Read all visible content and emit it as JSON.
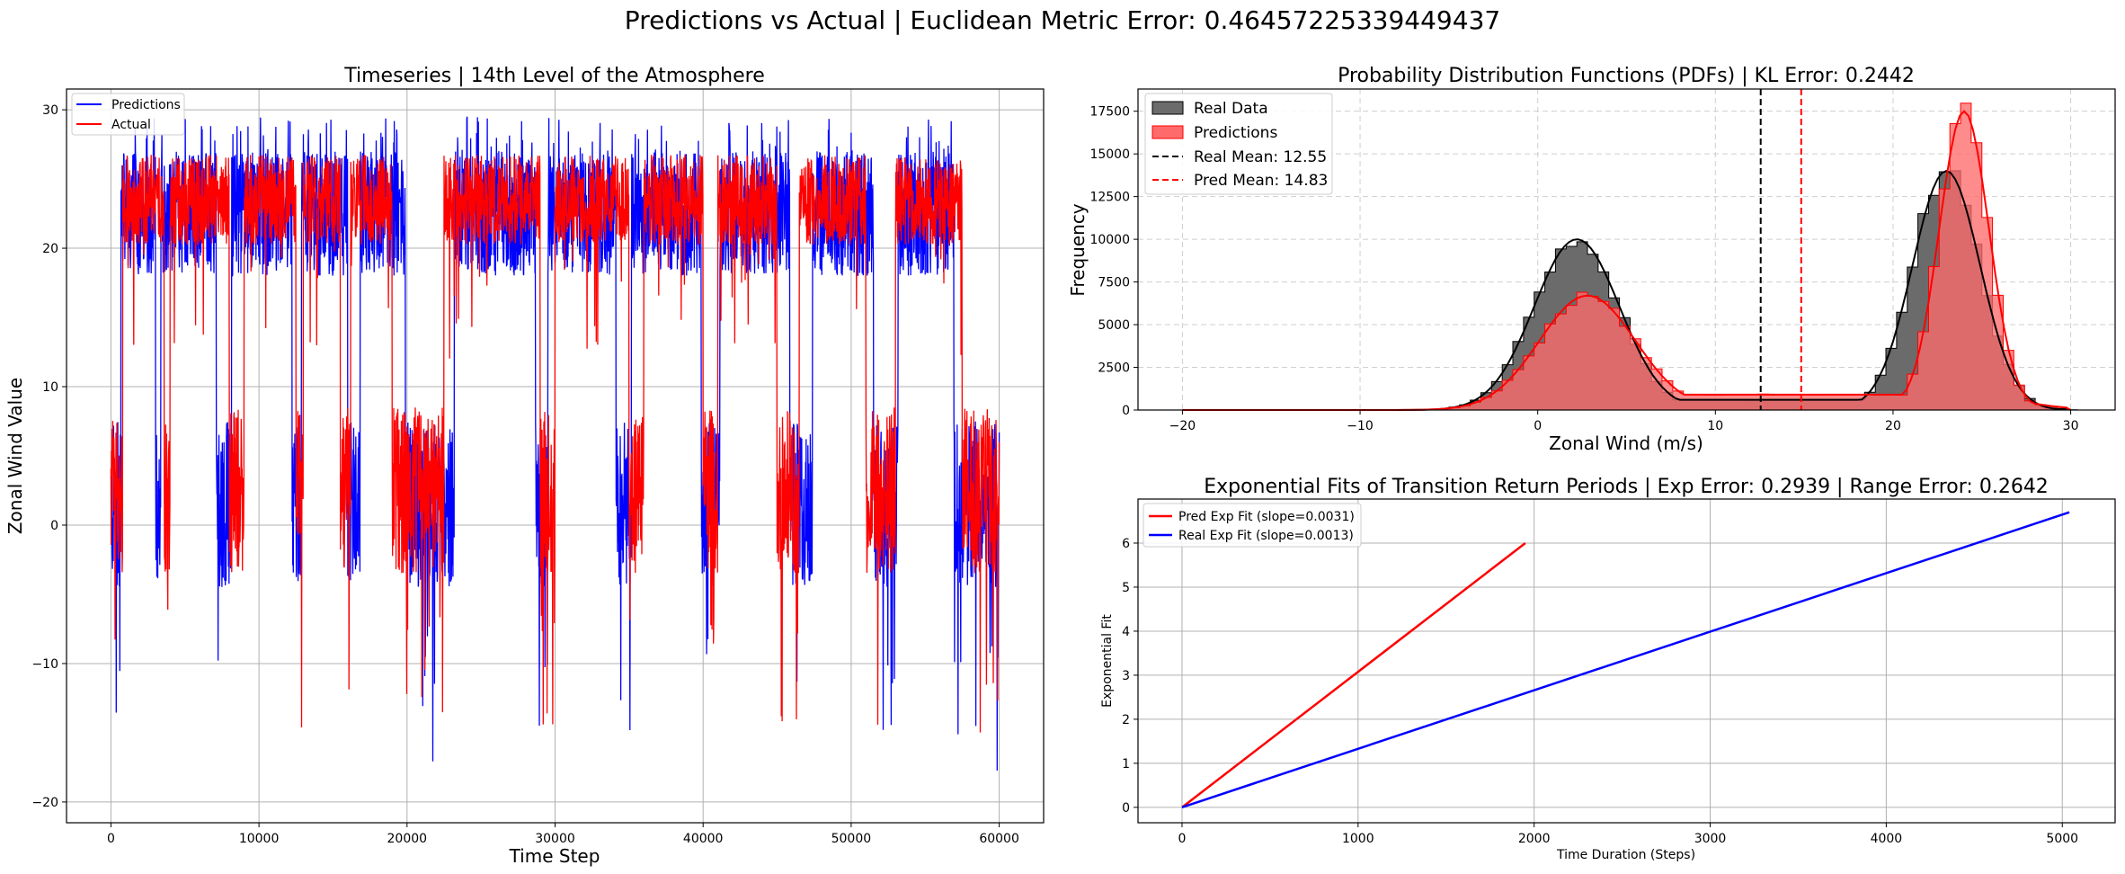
{
  "figure": {
    "suptitle": "Predictions vs Actual | Euclidean Metric Error: 0.46457225339449437"
  },
  "colors": {
    "predictions": "#0000ff",
    "actual": "#ff0000",
    "real_hist": "#6b6b6b",
    "pred_hist": "#ff6b6b",
    "grid": "#b0b0b0"
  },
  "chart_data": [
    {
      "type": "line",
      "title": "Timeseries | 14th Level of the Atmosphere",
      "xlabel": "Time Step",
      "ylabel": "Zonal Wind Value",
      "xlim": [
        -3000,
        63000
      ],
      "ylim": [
        -21.5,
        31.5
      ],
      "xticks": [
        0,
        10000,
        20000,
        30000,
        40000,
        50000,
        60000
      ],
      "yticks": [
        -20,
        -10,
        0,
        10,
        20,
        30
      ],
      "grid": true,
      "legend_position": "upper-left",
      "series": [
        {
          "name": "Predictions",
          "color": "#0000ff",
          "description_x_range": [
            0,
            60000
          ],
          "y_range": [
            -19,
            30
          ]
        },
        {
          "name": "Actual",
          "color": "#ff0000",
          "description_x_range": [
            0,
            60000
          ],
          "y_range": [
            -16.5,
            27
          ]
        }
      ],
      "regime_segments_actual": [
        [
          0,
          800,
          "low"
        ],
        [
          800,
          3600,
          "high"
        ],
        [
          3600,
          4000,
          "low"
        ],
        [
          4000,
          8000,
          "high"
        ],
        [
          8000,
          9000,
          "low"
        ],
        [
          9000,
          12500,
          "high"
        ],
        [
          12500,
          13000,
          "low"
        ],
        [
          13000,
          15500,
          "high"
        ],
        [
          15500,
          16200,
          "low"
        ],
        [
          16200,
          19000,
          "high"
        ],
        [
          19000,
          22500,
          "low"
        ],
        [
          22500,
          29000,
          "high"
        ],
        [
          29000,
          30000,
          "low"
        ],
        [
          30000,
          35000,
          "high"
        ],
        [
          35000,
          36000,
          "low"
        ],
        [
          36000,
          40000,
          "high"
        ],
        [
          40000,
          41000,
          "low"
        ],
        [
          41000,
          45000,
          "high"
        ],
        [
          45000,
          46500,
          "low"
        ],
        [
          46500,
          51000,
          "high"
        ],
        [
          51000,
          53000,
          "low"
        ],
        [
          53000,
          57500,
          "high"
        ],
        [
          57500,
          60000,
          "low"
        ]
      ]
    },
    {
      "type": "bar",
      "title": "Probability Distribution Functions (PDFs) | KL Error: 0.2442",
      "xlabel": "Zonal Wind (m/s)",
      "ylabel": "Frequency",
      "xlim": [
        -22.5,
        32.5
      ],
      "ylim": [
        0,
        18800
      ],
      "xticks": [
        -20,
        -10,
        0,
        10,
        20,
        30
      ],
      "yticks": [
        0,
        2500,
        5000,
        7500,
        10000,
        12500,
        15000,
        17500
      ],
      "grid": true,
      "grid_style": "dashed",
      "legend_position": "upper-left",
      "series": [
        {
          "name": "Real Data",
          "color": "#6b6b6b",
          "bimodal": {
            "peaks": [
              {
                "mean": 2.2,
                "height": 10000,
                "sd": 2.4
              },
              {
                "mean": 23.0,
                "height": 14000,
                "sd": 1.9
              }
            ],
            "plateau": 600
          }
        },
        {
          "name": "Predictions",
          "color": "#ff6b6b",
          "bimodal": {
            "peaks": [
              {
                "mean": 2.8,
                "height": 6700,
                "sd": 2.7
              },
              {
                "mean": 24.0,
                "height": 17500,
                "sd": 1.4
              }
            ],
            "plateau": 900
          }
        }
      ],
      "vlines": [
        {
          "label": "Real Mean: 12.55",
          "x": 12.55,
          "color": "#000000"
        },
        {
          "label": "Pred Mean: 14.83",
          "x": 14.83,
          "color": "#ff0000"
        }
      ]
    },
    {
      "type": "line",
      "title": "Exponential Fits of Transition Return Periods | Exp Error: 0.2939 | Range Error: 0.2642",
      "xlabel": "Time Duration (Steps)",
      "ylabel": "Exponential Fit",
      "xlim": [
        -250,
        5300
      ],
      "ylim": [
        -0.35,
        7.0
      ],
      "xticks": [
        0,
        1000,
        2000,
        3000,
        4000,
        5000
      ],
      "yticks": [
        0,
        1,
        2,
        3,
        4,
        5,
        6
      ],
      "grid": true,
      "legend_position": "upper-left",
      "series": [
        {
          "name": "Pred Exp Fit (slope=0.0031)",
          "color": "#ff0000",
          "x": [
            0,
            1950
          ],
          "y": [
            0,
            6.0
          ]
        },
        {
          "name": "Real Exp Fit (slope=0.0013)",
          "color": "#0000ff",
          "x": [
            0,
            5040
          ],
          "y": [
            0,
            6.7
          ]
        }
      ]
    }
  ]
}
